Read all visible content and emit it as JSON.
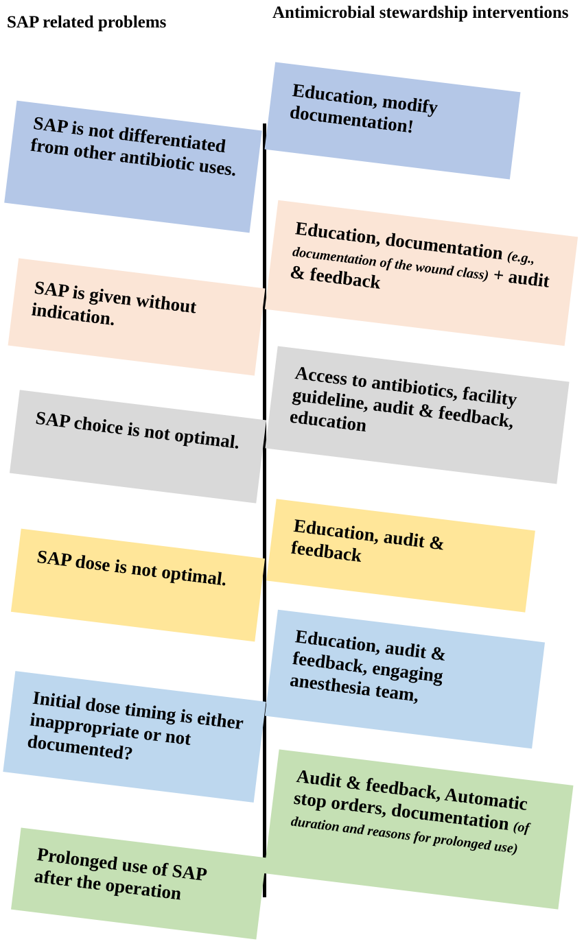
{
  "headers": {
    "left": "SAP related problems",
    "right": "Antimicrobial stewardship interventions"
  },
  "colors": {
    "blue": "#b4c7e7",
    "peach": "#fbe5d6",
    "gray": "#d9d9d9",
    "yellow": "#ffe699",
    "light_blue": "#bdd7ee",
    "green": "#c5e0b4"
  },
  "problems": [
    {
      "text": "SAP is not differentiated from other antibiotic uses."
    },
    {
      "text": "SAP is given without indication."
    },
    {
      "text": "SAP choice is not optimal."
    },
    {
      "text": "SAP dose is not optimal."
    },
    {
      "text": "Initial dose timing is either inappropriate or not documented?"
    },
    {
      "text": "Prolonged use of SAP after the operation"
    }
  ],
  "interventions": [
    {
      "text": "Education, modify documentation!"
    },
    {
      "text": "Education, documentation",
      "italic": "(e.g., documentation of the wound class)",
      "tail": " + audit & feedback"
    },
    {
      "text": "Access to antibiotics, facility guideline, audit & feedback, education"
    },
    {
      "text": "Education, audit & feedback"
    },
    {
      "text": "Education, audit & feedback, engaging anesthesia team,"
    },
    {
      "text": "Audit & feedback, Automatic stop orders, documentation ",
      "italic": "(of duration and reasons for prolonged use)"
    }
  ]
}
